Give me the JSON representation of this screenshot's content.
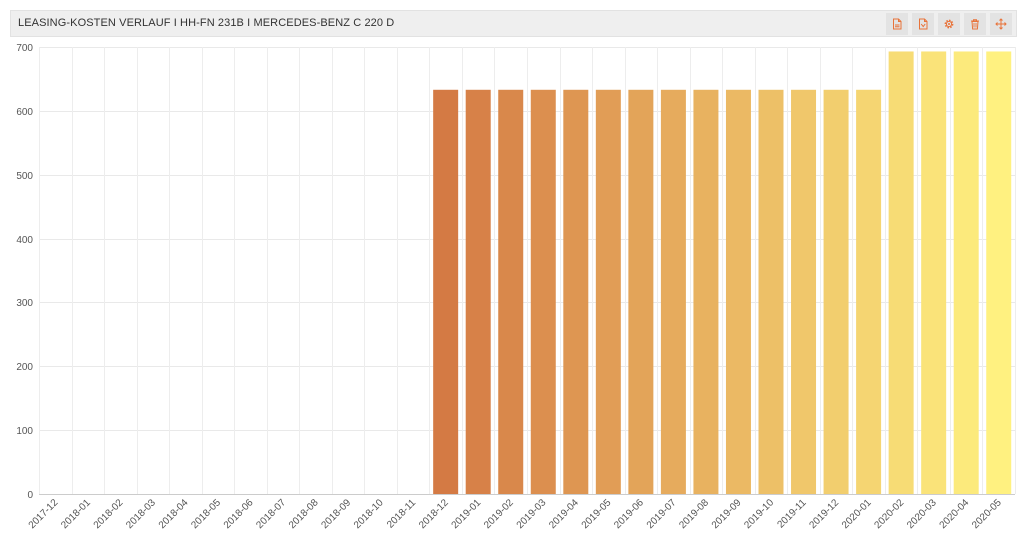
{
  "widget": {
    "title": "LEASING-KOSTEN VERLAUF I HH-FN 231B I MERCEDES-BENZ C 220 D",
    "accent_color": "#e8733a",
    "toolbar": [
      {
        "name": "export-pdf-button",
        "icon": "file-pdf-icon"
      },
      {
        "name": "export-file-button",
        "icon": "file-export-icon"
      },
      {
        "name": "settings-button",
        "icon": "gear-icon"
      },
      {
        "name": "delete-button",
        "icon": "trash-icon"
      },
      {
        "name": "move-button",
        "icon": "move-arrows-icon"
      }
    ]
  },
  "chart_data": {
    "type": "bar",
    "title": "",
    "xlabel": "",
    "ylabel": "",
    "ylim": [
      0,
      700
    ],
    "yticks": [
      0,
      100,
      200,
      300,
      400,
      500,
      600,
      700
    ],
    "grid": true,
    "categories": [
      "2017-12",
      "2018-01",
      "2018-02",
      "2018-03",
      "2018-04",
      "2018-05",
      "2018-06",
      "2018-07",
      "2018-08",
      "2018-09",
      "2018-10",
      "2018-11",
      "2018-12",
      "2019-01",
      "2019-02",
      "2019-03",
      "2019-04",
      "2019-05",
      "2019-06",
      "2019-07",
      "2019-08",
      "2019-09",
      "2019-10",
      "2019-11",
      "2019-12",
      "2020-01",
      "2020-02",
      "2020-03",
      "2020-04",
      "2020-05"
    ],
    "values": [
      0,
      0,
      0,
      0,
      0,
      0,
      0,
      0,
      0,
      0,
      0,
      0,
      633,
      633,
      633,
      633,
      633,
      633,
      633,
      633,
      633,
      633,
      633,
      633,
      633,
      633,
      693,
      693,
      693,
      693
    ],
    "color_gradient": [
      "#d47a44",
      "#fff180"
    ]
  }
}
